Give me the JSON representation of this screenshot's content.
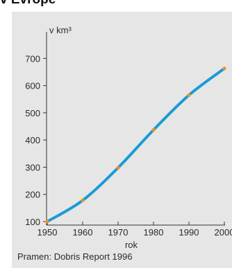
{
  "heading": "v Evropě",
  "chart_data": {
    "type": "line",
    "x": [
      1950,
      1960,
      1970,
      1980,
      1990,
      2000
    ],
    "series": [
      {
        "values": [
          100,
          178,
          298,
          437,
          565,
          663
        ]
      }
    ],
    "xlabel": "rok",
    "ylabel": "v km³",
    "xlim": [
      1950,
      2000
    ],
    "ylim": [
      0,
      700
    ],
    "xticks": [
      "1950",
      "1960",
      "1970",
      "1980",
      "1990",
      "2000"
    ],
    "yticks": [
      "100",
      "200",
      "300",
      "400",
      "500",
      "600",
      "700"
    ],
    "grid": false,
    "colors": {
      "line": "#1a9bd7",
      "marker": "#f0901e",
      "axis": "#333333"
    }
  },
  "source": "Pramen: Dobris Report 1996"
}
